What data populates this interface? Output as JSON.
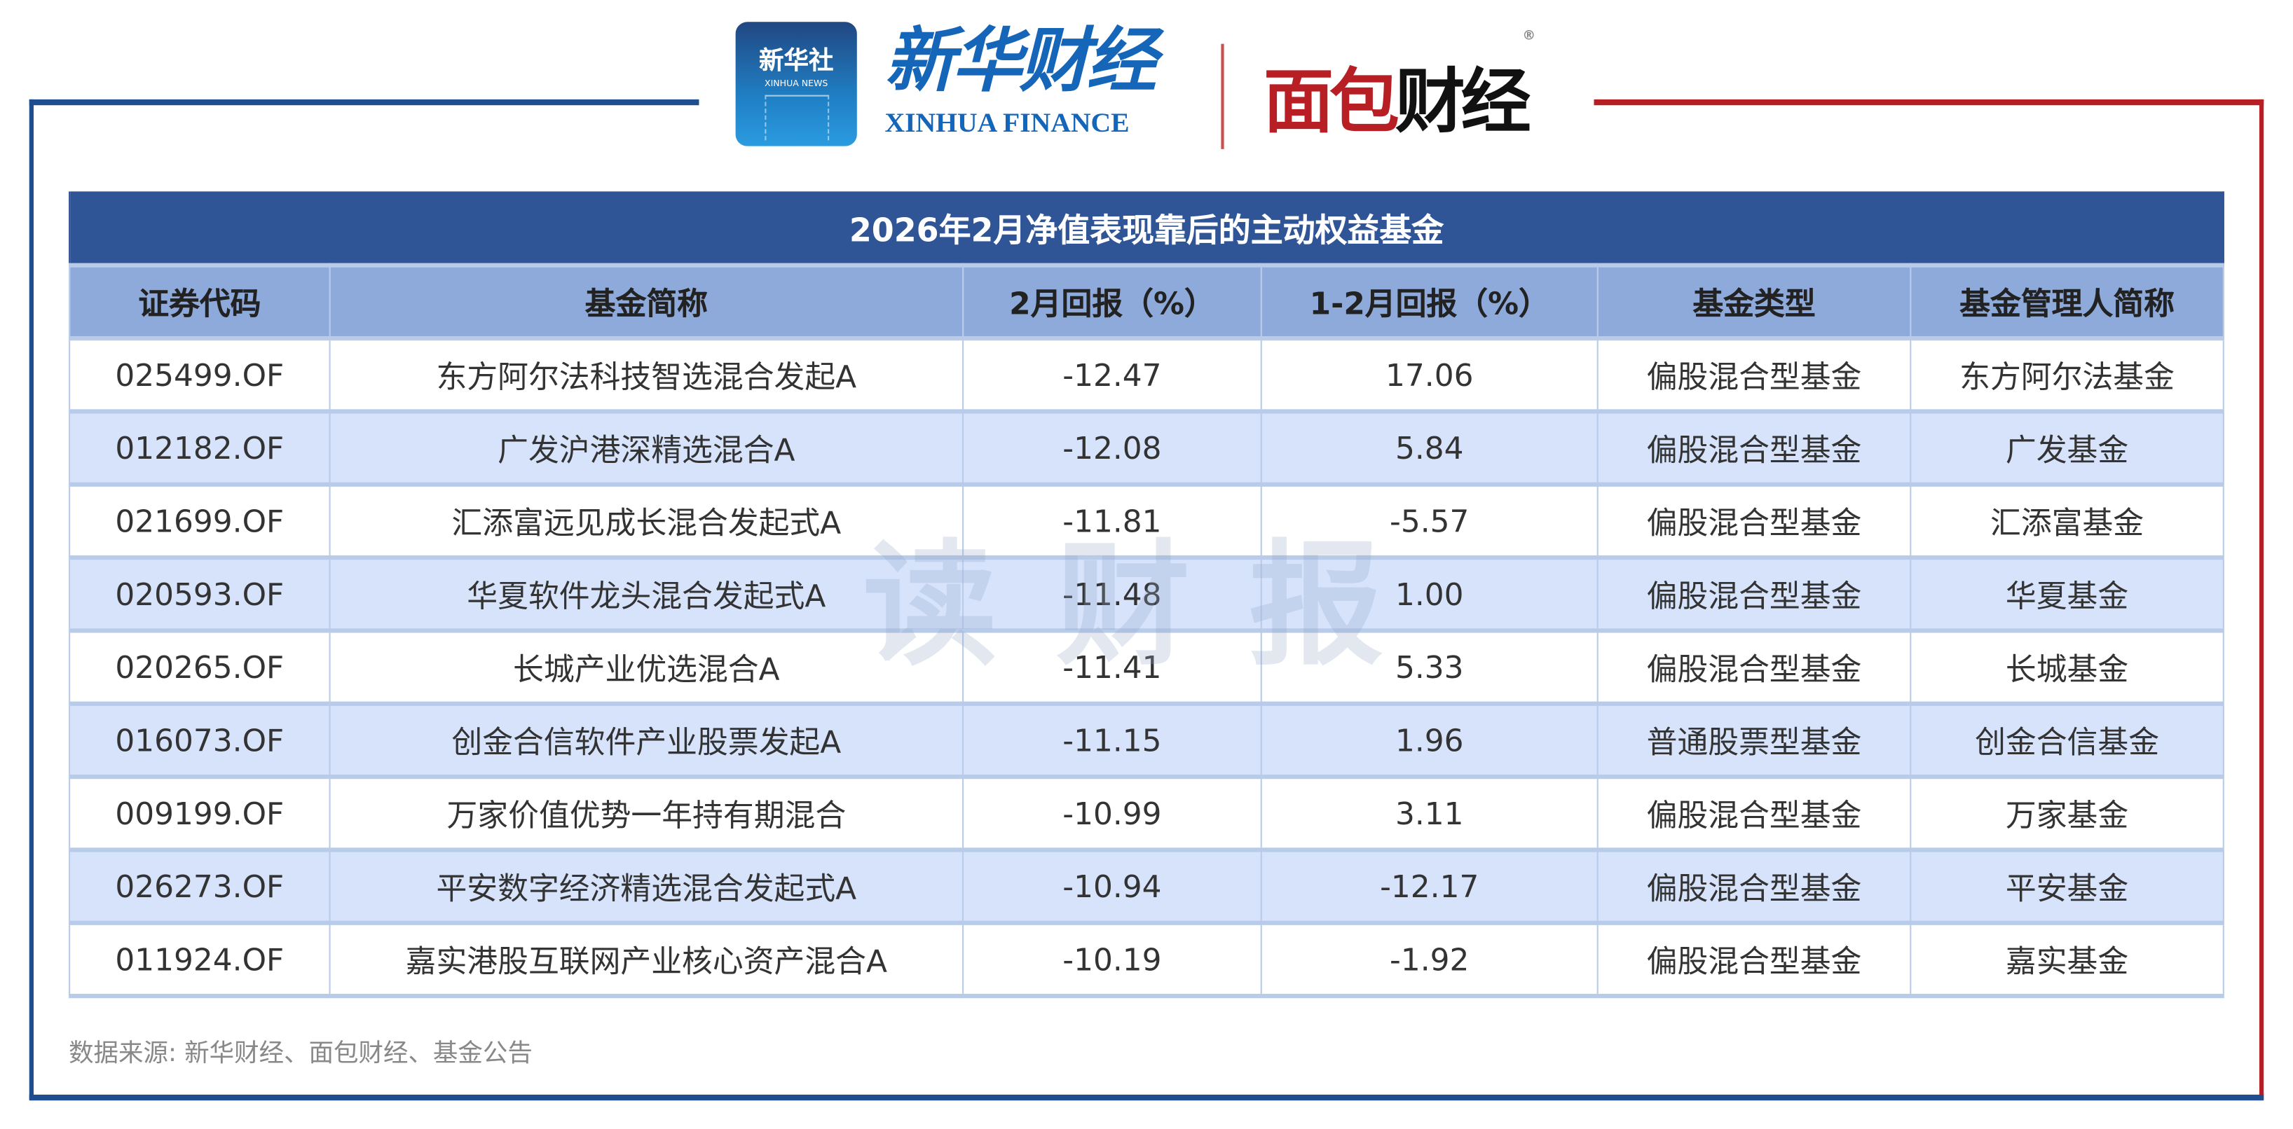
{
  "logos": {
    "xinhua_news": {
      "cn": "新华社",
      "en": "XINHUA NEWS"
    },
    "xinhua_finance": {
      "cn": "新华财经",
      "en": "XINHUA FINANCE"
    },
    "mianbao": {
      "cn_red": "面包",
      "cn_black": "财经",
      "registered": "®"
    }
  },
  "watermark": "读财报",
  "table": {
    "title": "2026年2月净值表现靠后的主动权益基金",
    "columns": [
      "证券代码",
      "基金简称",
      "2月回报（%）",
      "1-2月回报（%）",
      "基金类型",
      "基金管理人简称"
    ],
    "rows": [
      [
        "025499.OF",
        "东方阿尔法科技智选混合发起A",
        "-12.47",
        "17.06",
        "偏股混合型基金",
        "东方阿尔法基金"
      ],
      [
        "012182.OF",
        "广发沪港深精选混合A",
        "-12.08",
        "5.84",
        "偏股混合型基金",
        "广发基金"
      ],
      [
        "021699.OF",
        "汇添富远见成长混合发起式A",
        "-11.81",
        "-5.57",
        "偏股混合型基金",
        "汇添富基金"
      ],
      [
        "020593.OF",
        "华夏软件龙头混合发起式A",
        "-11.48",
        "1.00",
        "偏股混合型基金",
        "华夏基金"
      ],
      [
        "020265.OF",
        "长城产业优选混合A",
        "-11.41",
        "5.33",
        "偏股混合型基金",
        "长城基金"
      ],
      [
        "016073.OF",
        "创金合信软件产业股票发起A",
        "-11.15",
        "1.96",
        "普通股票型基金",
        "创金合信基金"
      ],
      [
        "009199.OF",
        "万家价值优势一年持有期混合",
        "-10.99",
        "3.11",
        "偏股混合型基金",
        "万家基金"
      ],
      [
        "026273.OF",
        "平安数字经济精选混合发起式A",
        "-10.94",
        "-12.17",
        "偏股混合型基金",
        "平安基金"
      ],
      [
        "011924.OF",
        "嘉实港股互联网产业核心资产混合A",
        "-10.19",
        "-1.92",
        "偏股混合型基金",
        "嘉实基金"
      ]
    ]
  },
  "source": "数据来源: 新华财经、面包财经、基金公告",
  "colors": {
    "frame_blue": "#1f4e8f",
    "frame_red": "#b81f24",
    "title_bg": "#2f5597",
    "header_bg": "#8eaadb",
    "alt_row": "#d6e3fb"
  }
}
